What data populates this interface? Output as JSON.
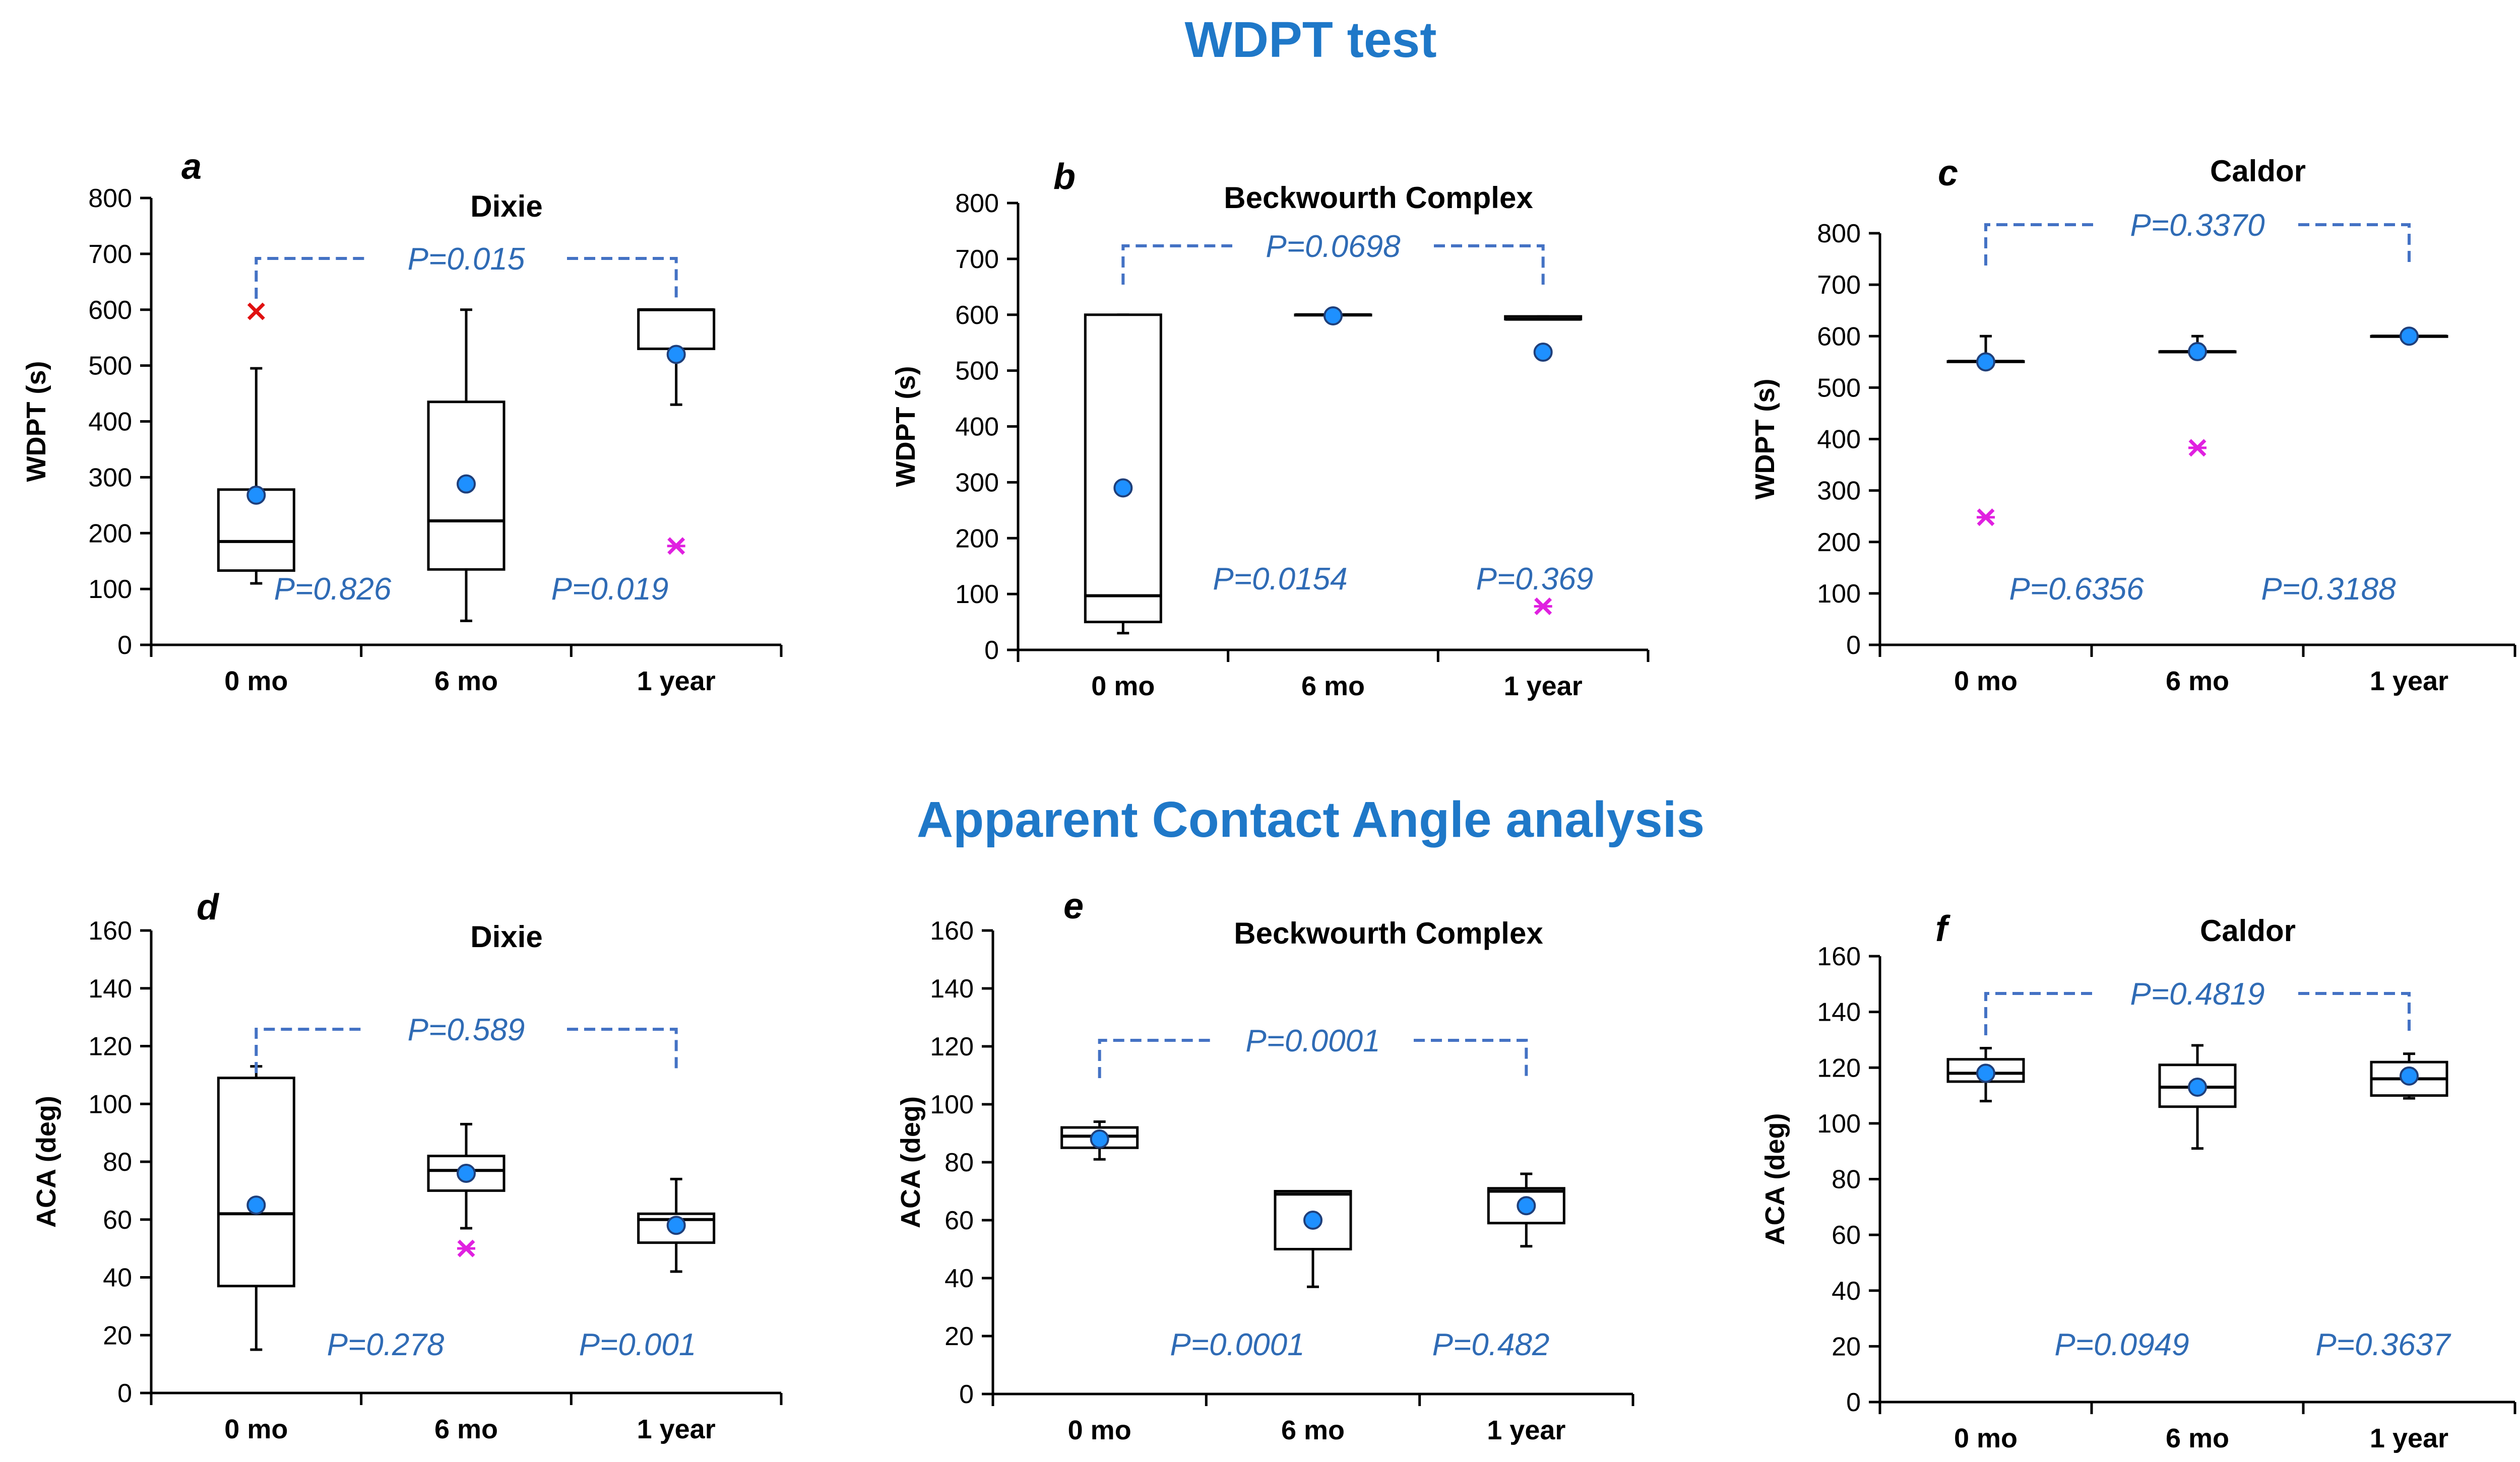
{
  "figure": {
    "section_titles": [
      "WDPT test",
      "Apparent Contact Angle analysis"
    ],
    "colors": {
      "mean_fill": "#1E90FF",
      "mean_stroke": "#1F3F7A",
      "pvalue_text": "#2F6BB5",
      "bracket": "#4472C4",
      "outlier_magenta": "#E020E0",
      "outlier_red": "#E01010",
      "title_blue": "#1F78C8"
    }
  },
  "chart_data": [
    {
      "type": "box",
      "panel_letter": "a",
      "title": "Dixie",
      "ylabel": "WDPT (s)",
      "ylim": [
        0,
        800
      ],
      "yticks": [
        "0",
        "100",
        "200",
        "300",
        "400",
        "500",
        "600",
        "700",
        "800"
      ],
      "categories": [
        "0 mo",
        "6 mo",
        "1 year"
      ],
      "boxes": [
        {
          "whisker_low": 110,
          "q1": 133,
          "median": 185,
          "q3": 278,
          "whisker_high": 495,
          "mean": 268
        },
        {
          "whisker_low": 43,
          "q1": 135,
          "median": 222,
          "q3": 435,
          "whisker_high": 600,
          "mean": 288
        },
        {
          "whisker_low": 430,
          "q1": 530,
          "median": 600,
          "q3": 600,
          "whisker_high": 600,
          "mean": 520
        }
      ],
      "outliers": [
        {
          "category": 0,
          "value": 597,
          "color": "red"
        },
        {
          "category": 2,
          "value": 177,
          "color": "magenta"
        }
      ],
      "bracket_label": "P=0.015",
      "pvalues": [
        "P=0.826",
        "P=0.019"
      ]
    },
    {
      "type": "box",
      "panel_letter": "b",
      "title": "Beckwourth Complex",
      "ylabel": "WDPT (s)",
      "ylim": [
        0,
        800
      ],
      "yticks": [
        "0",
        "100",
        "200",
        "300",
        "400",
        "500",
        "600",
        "700",
        "800"
      ],
      "categories": [
        "0 mo",
        "6 mo",
        "1 year"
      ],
      "boxes": [
        {
          "whisker_low": 30,
          "q1": 50,
          "median": 97,
          "q3": 600,
          "whisker_high": 600,
          "mean": 290
        },
        {
          "whisker_low": 600,
          "q1": 600,
          "median": 600,
          "q3": 600,
          "whisker_high": 600,
          "mean": 598
        },
        {
          "whisker_low": 592,
          "q1": 592,
          "median": 592,
          "q3": 597,
          "whisker_high": 597,
          "mean": 533
        }
      ],
      "outliers": [
        {
          "category": 2,
          "value": 78,
          "color": "magenta"
        }
      ],
      "bracket_label": "P=0.0698",
      "pvalues": [
        "P=0.0154",
        "P=0.369"
      ]
    },
    {
      "type": "box",
      "panel_letter": "c",
      "title": "Caldor",
      "ylabel": "WDPT (s)",
      "ylim": [
        0,
        800
      ],
      "yticks": [
        "0",
        "100",
        "200",
        "300",
        "400",
        "500",
        "600",
        "700",
        "800"
      ],
      "categories": [
        "0 mo",
        "6 mo",
        "1 year"
      ],
      "boxes": [
        {
          "whisker_low": 551,
          "q1": 551,
          "median": 551,
          "q3": 551,
          "whisker_high": 600,
          "mean": 550
        },
        {
          "whisker_low": 570,
          "q1": 570,
          "median": 570,
          "q3": 570,
          "whisker_high": 600,
          "mean": 570
        },
        {
          "whisker_low": 600,
          "q1": 600,
          "median": 600,
          "q3": 600,
          "whisker_high": 600,
          "mean": 600
        }
      ],
      "outliers": [
        {
          "category": 0,
          "value": 248,
          "color": "magenta"
        },
        {
          "category": 1,
          "value": 383,
          "color": "magenta"
        }
      ],
      "bracket_label": "P=0.3370",
      "pvalues": [
        "P=0.6356",
        "P=0.3188"
      ]
    },
    {
      "type": "box",
      "panel_letter": "d",
      "title": "Dixie",
      "ylabel": "ACA (deg)",
      "ylim": [
        0,
        160
      ],
      "yticks": [
        "0",
        "20",
        "40",
        "60",
        "80",
        "100",
        "120",
        "140",
        "160"
      ],
      "categories": [
        "0 mo",
        "6 mo",
        "1 year"
      ],
      "boxes": [
        {
          "whisker_low": 15,
          "q1": 37,
          "median": 62,
          "q3": 109,
          "whisker_high": 113,
          "mean": 65
        },
        {
          "whisker_low": 57,
          "q1": 70,
          "median": 77,
          "q3": 82,
          "whisker_high": 93,
          "mean": 76
        },
        {
          "whisker_low": 42,
          "q1": 52,
          "median": 60,
          "q3": 62,
          "whisker_high": 74,
          "mean": 58
        }
      ],
      "outliers": [
        {
          "category": 1,
          "value": 50,
          "color": "magenta"
        }
      ],
      "bracket_label": "P=0.589",
      "pvalues": [
        "P=0.278",
        "P=0.001"
      ]
    },
    {
      "type": "box",
      "panel_letter": "e",
      "title": "Beckwourth Complex",
      "ylabel": "ACA (deg)",
      "ylim": [
        0,
        160
      ],
      "yticks": [
        "0",
        "20",
        "40",
        "60",
        "80",
        "100",
        "120",
        "140",
        "160"
      ],
      "categories": [
        "0 mo",
        "6 mo",
        "1 year"
      ],
      "boxes": [
        {
          "whisker_low": 81,
          "q1": 85,
          "median": 89,
          "q3": 92,
          "whisker_high": 94,
          "mean": 88
        },
        {
          "whisker_low": 37,
          "q1": 50,
          "median": 69,
          "q3": 70,
          "whisker_high": 70,
          "mean": 60
        },
        {
          "whisker_low": 51,
          "q1": 59,
          "median": 70,
          "q3": 71,
          "whisker_high": 76,
          "mean": 65
        }
      ],
      "outliers": [],
      "bracket_label": "P=0.0001",
      "pvalues": [
        "P=0.0001",
        "P=0.482"
      ]
    },
    {
      "type": "box",
      "panel_letter": "f",
      "title": "Caldor",
      "ylabel": "ACA (deg)",
      "ylim": [
        0,
        160
      ],
      "yticks": [
        "0",
        "20",
        "40",
        "60",
        "80",
        "100",
        "120",
        "140",
        "160"
      ],
      "categories": [
        "0 mo",
        "6 mo",
        "1 year"
      ],
      "boxes": [
        {
          "whisker_low": 108,
          "q1": 115,
          "median": 118,
          "q3": 123,
          "whisker_high": 127,
          "mean": 118
        },
        {
          "whisker_low": 91,
          "q1": 106,
          "median": 113,
          "q3": 121,
          "whisker_high": 128,
          "mean": 113
        },
        {
          "whisker_low": 109,
          "q1": 110,
          "median": 116,
          "q3": 122,
          "whisker_high": 125,
          "mean": 117
        }
      ],
      "outliers": [],
      "bracket_label": "P=0.4819",
      "pvalues": [
        "P=0.0949",
        "P=0.3637"
      ]
    }
  ]
}
